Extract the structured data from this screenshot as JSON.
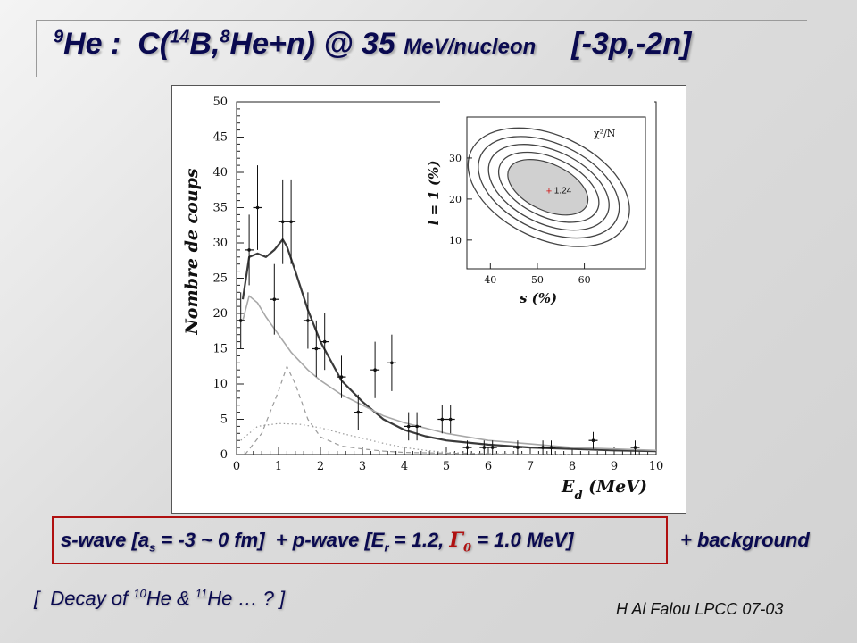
{
  "title": {
    "mass_a": "9",
    "nucleus_a": "He",
    "sep": " :  C(",
    "mass_b": "14",
    "nucleus_b": "B,",
    "mass_c": "8",
    "rest": "He+n) @ 35 ",
    "unit": "MeV/nucleon",
    "tag": "[-3p,-2n]"
  },
  "caption": {
    "s_pre": "s-wave [a",
    "s_sub": "s",
    "s_post": " = -3 ~ 0 fm]  + p-wave [E",
    "p_sub": "r",
    "p_mid": " = 1.2, ",
    "gamma": "Γ",
    "gamma_sub": "0",
    "p_post": " = 1.0 MeV]",
    "background": "+ background"
  },
  "decay": {
    "pre": "[  Decay of ",
    "m1": "10",
    "mid": "He & ",
    "m2": "11",
    "post": "He … ?  ]"
  },
  "author": "H Al Falou LPCC 07-03",
  "chart_data": [
    {
      "type": "scatter",
      "xlabel": "E_d (MeV)",
      "ylabel": "Nombre de coups",
      "xlim": [
        0,
        10
      ],
      "ylim": [
        0,
        50
      ],
      "x_ticks": [
        "0",
        "1",
        "2",
        "3",
        "4",
        "5",
        "6",
        "7",
        "8",
        "9",
        "10"
      ],
      "y_ticks": [
        "0",
        "5",
        "10",
        "15",
        "20",
        "25",
        "30",
        "35",
        "40",
        "45",
        "50"
      ],
      "points": [
        {
          "x": 0.1,
          "y": 19,
          "err": 4
        },
        {
          "x": 0.3,
          "y": 29,
          "err": 5
        },
        {
          "x": 0.5,
          "y": 35,
          "err": 6
        },
        {
          "x": 0.9,
          "y": 22,
          "err": 5
        },
        {
          "x": 1.1,
          "y": 33,
          "err": 6
        },
        {
          "x": 1.3,
          "y": 33,
          "err": 6
        },
        {
          "x": 1.7,
          "y": 19,
          "err": 4
        },
        {
          "x": 1.9,
          "y": 15,
          "err": 4
        },
        {
          "x": 2.1,
          "y": 16,
          "err": 4
        },
        {
          "x": 2.5,
          "y": 11,
          "err": 3
        },
        {
          "x": 2.9,
          "y": 6,
          "err": 2.5
        },
        {
          "x": 3.3,
          "y": 12,
          "err": 4
        },
        {
          "x": 3.7,
          "y": 13,
          "err": 4
        },
        {
          "x": 4.1,
          "y": 4,
          "err": 2
        },
        {
          "x": 4.3,
          "y": 4,
          "err": 2
        },
        {
          "x": 4.9,
          "y": 5,
          "err": 2
        },
        {
          "x": 5.1,
          "y": 5,
          "err": 2
        },
        {
          "x": 5.5,
          "y": 1,
          "err": 1
        },
        {
          "x": 5.9,
          "y": 1,
          "err": 1
        },
        {
          "x": 6.1,
          "y": 1,
          "err": 1
        },
        {
          "x": 6.7,
          "y": 1,
          "err": 1
        },
        {
          "x": 7.3,
          "y": 1,
          "err": 1
        },
        {
          "x": 7.5,
          "y": 1,
          "err": 1
        },
        {
          "x": 8.5,
          "y": 2,
          "err": 1.2
        },
        {
          "x": 9.5,
          "y": 1,
          "err": 1
        }
      ],
      "curves": [
        {
          "name": "total",
          "style": "solid-dark",
          "x": [
            0.15,
            0.3,
            0.5,
            0.7,
            0.9,
            1.1,
            1.2,
            1.4,
            1.7,
            2,
            2.5,
            3,
            3.5,
            4,
            4.5,
            5,
            6,
            7,
            8,
            9,
            10
          ],
          "y": [
            22,
            28,
            28.5,
            28,
            29,
            30.5,
            29.5,
            26,
            20.5,
            16,
            10.5,
            7.5,
            5,
            3.5,
            2.6,
            2,
            1.4,
            1,
            0.8,
            0.6,
            0.5
          ]
        },
        {
          "name": "s-wave",
          "style": "solid-light",
          "x": [
            0.15,
            0.3,
            0.5,
            0.7,
            1,
            1.3,
            1.7,
            2,
            2.5,
            3,
            3.5,
            4,
            5,
            6,
            7,
            8,
            9,
            10
          ],
          "y": [
            19,
            22.5,
            21.5,
            19.5,
            17,
            14.5,
            12,
            10.5,
            8.5,
            7,
            5.5,
            4.5,
            3,
            2,
            1.5,
            1,
            0.8,
            0.6
          ]
        },
        {
          "name": "p-wave",
          "style": "dashed",
          "x": [
            0.2,
            0.6,
            1,
            1.2,
            1.4,
            1.7,
            2,
            2.5,
            3,
            3.5,
            4,
            5,
            6,
            7
          ],
          "y": [
            0,
            3,
            9,
            12.5,
            10,
            5,
            2.5,
            1.2,
            0.8,
            0.5,
            0.3,
            0.2,
            0.1,
            0.05
          ]
        },
        {
          "name": "background",
          "style": "dotted",
          "x": [
            0.1,
            0.5,
            1,
            1.5,
            2,
            2.5,
            3,
            3.5,
            4,
            4.5,
            5,
            6,
            7,
            8
          ],
          "y": [
            2,
            4,
            4.4,
            4.3,
            3.8,
            3,
            2.3,
            1.6,
            1,
            0.6,
            0.3,
            0.1,
            0.05,
            0
          ]
        }
      ]
    },
    {
      "type": "contour",
      "xlabel": "s (%)",
      "ylabel": "l = 1 (%)",
      "xlim": [
        35,
        73
      ],
      "ylim": [
        3,
        40
      ],
      "x_ticks": [
        "40",
        "50",
        "60"
      ],
      "y_ticks": [
        "10",
        "20",
        "30"
      ],
      "legend_label": "χ²/N",
      "minimum": {
        "x": 53,
        "y": 22,
        "label": "1.24"
      }
    }
  ]
}
